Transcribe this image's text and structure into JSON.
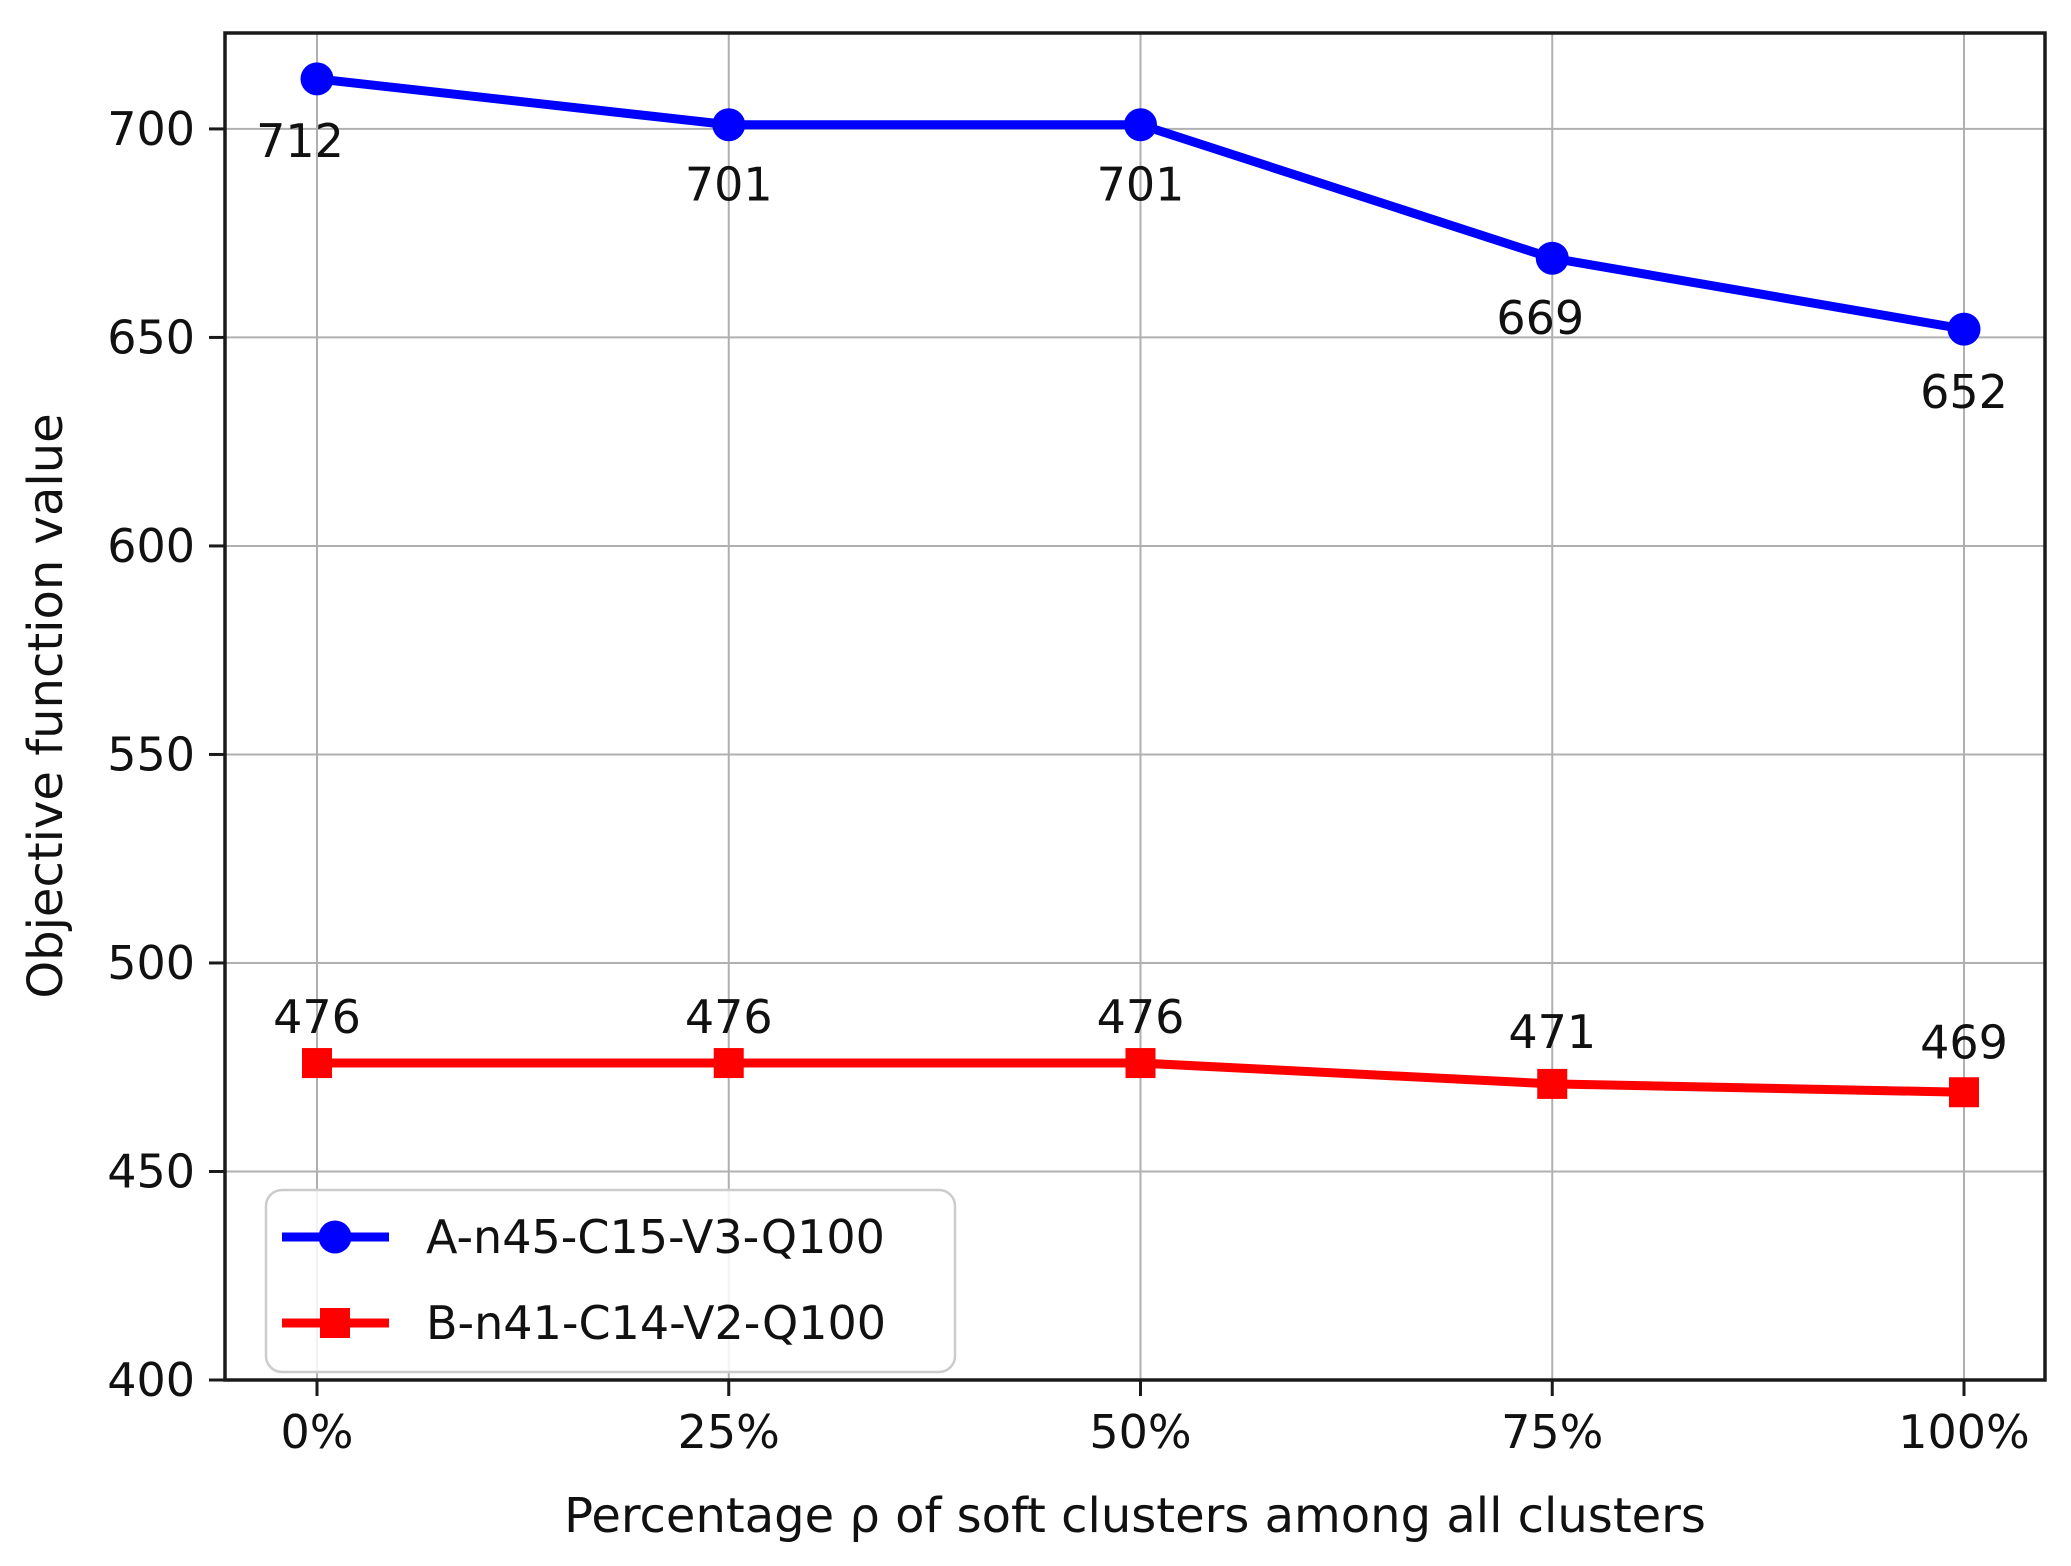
{
  "chart_data": {
    "type": "line",
    "title": "",
    "xlabel": "Percentage ρ of soft clusters among all clusters",
    "ylabel": "Objective function value",
    "categories": [
      "0%",
      "25%",
      "50%",
      "75%",
      "100%"
    ],
    "series": [
      {
        "name": "A-n45-C15-V3-Q100",
        "color": "#0000ff",
        "marker": "circle",
        "values": [
          712,
          701,
          701,
          669,
          652
        ],
        "point_labels": [
          "712",
          "701",
          "701",
          "669",
          "652"
        ],
        "label_side": "below"
      },
      {
        "name": "B-n41-C14-V2-Q100",
        "color": "#ff0000",
        "marker": "square",
        "values": [
          476,
          476,
          476,
          471,
          469
        ],
        "point_labels": [
          "476",
          "476",
          "476",
          "471",
          "469"
        ],
        "label_side": "above"
      }
    ],
    "y_ticks": [
      400,
      450,
      500,
      550,
      600,
      650,
      700
    ],
    "ylim": [
      400,
      723
    ],
    "grid": true,
    "legend_position": "lower left"
  },
  "style": {
    "grid_color": "#b0b0b0",
    "spine_color": "#1a1a1a",
    "text_color": "#111111",
    "legend_border_color": "#cccccc",
    "background": "#ffffff"
  }
}
